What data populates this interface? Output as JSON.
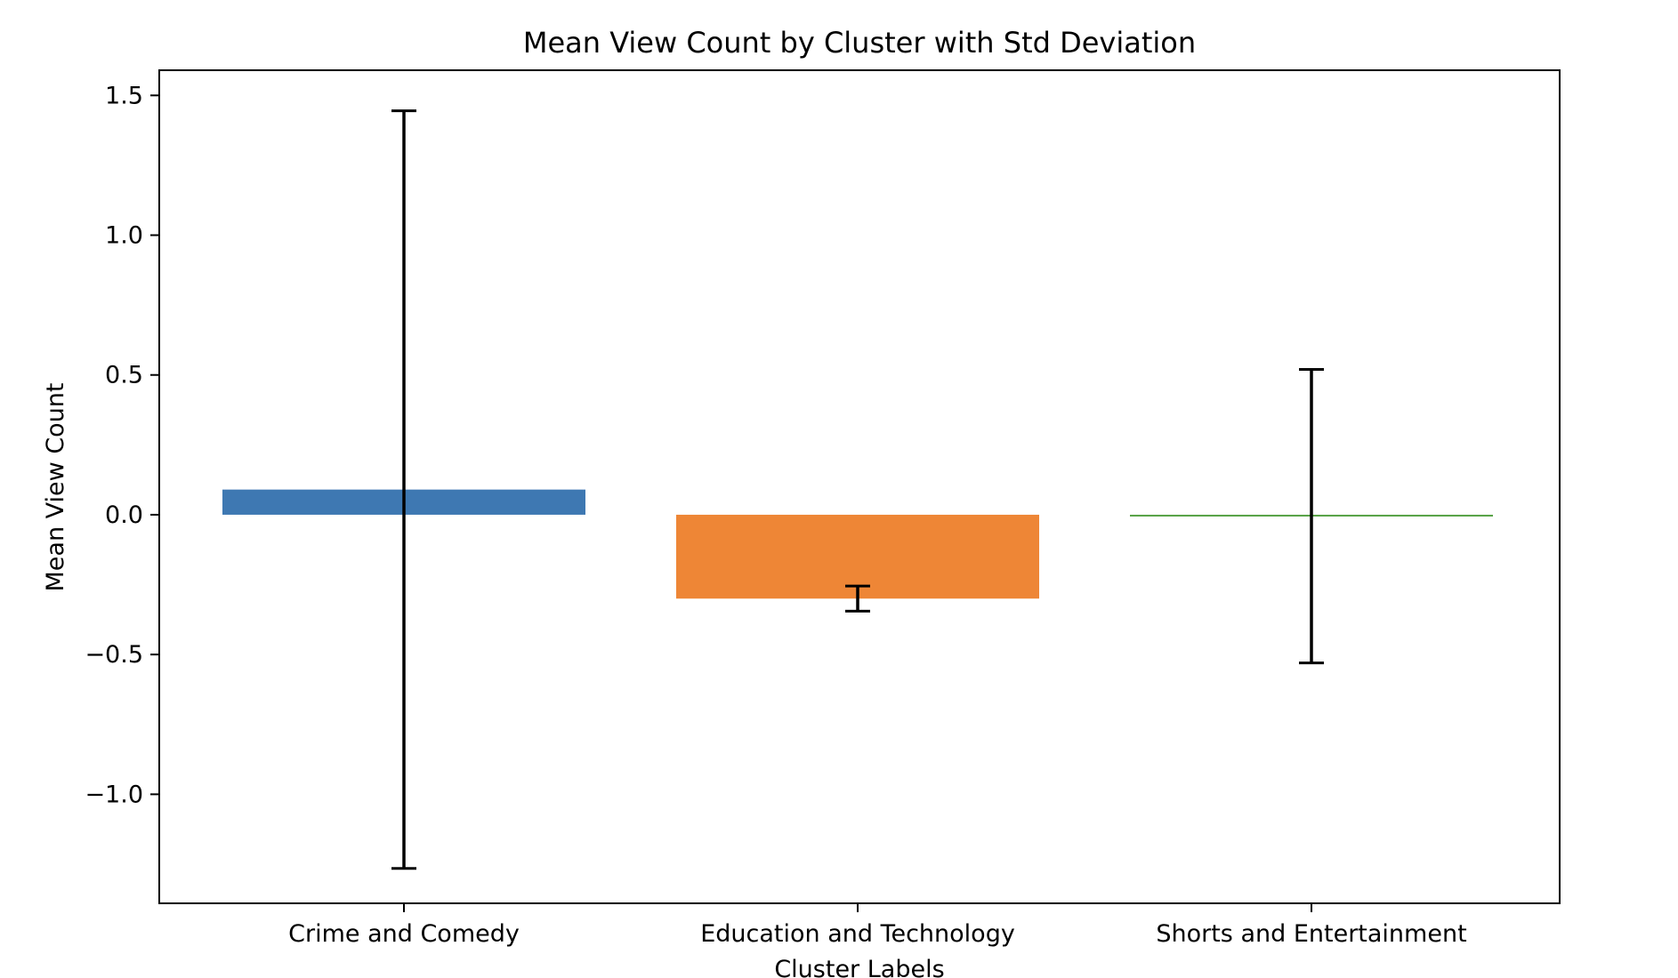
{
  "chart_data": {
    "type": "bar",
    "title": "Mean View Count by Cluster with Std Deviation",
    "xlabel": "Cluster Labels",
    "ylabel": "Mean View Count",
    "categories": [
      "Crime and Comedy",
      "Education and Technology",
      "Shorts and Entertainment"
    ],
    "values": [
      0.09,
      -0.3,
      -0.005
    ],
    "errors": [
      1.355,
      0.045,
      0.525
    ],
    "colors": [
      "#3e78b2",
      "#ee8636",
      "#55a144"
    ],
    "error_color": "#000000",
    "ylim": [
      -1.39,
      1.59
    ],
    "yticks": [
      1.5,
      1.0,
      0.5,
      0.0,
      -0.5,
      -1.0
    ],
    "ytick_labels": [
      "1.5",
      "1.0",
      "0.5",
      "0.0",
      "−0.5",
      "−1.0"
    ],
    "grid": false,
    "legend": "none"
  }
}
